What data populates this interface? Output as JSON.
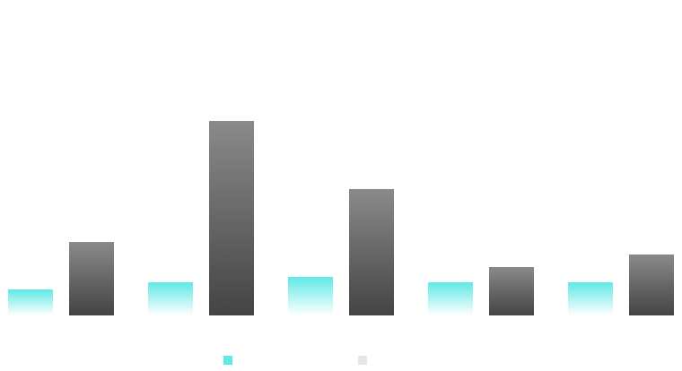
{
  "chart_data": {
    "type": "bar",
    "categories": [
      null,
      null,
      null,
      null,
      null
    ],
    "series": [
      {
        "color": "#5ee9e6",
        "values": [
          29,
          37,
          43,
          37,
          37
        ]
      },
      {
        "color": "#444444",
        "values": [
          82,
          217,
          141,
          54,
          68
        ]
      }
    ],
    "ylim": [
      0,
      250
    ],
    "legend": "bottom"
  }
}
